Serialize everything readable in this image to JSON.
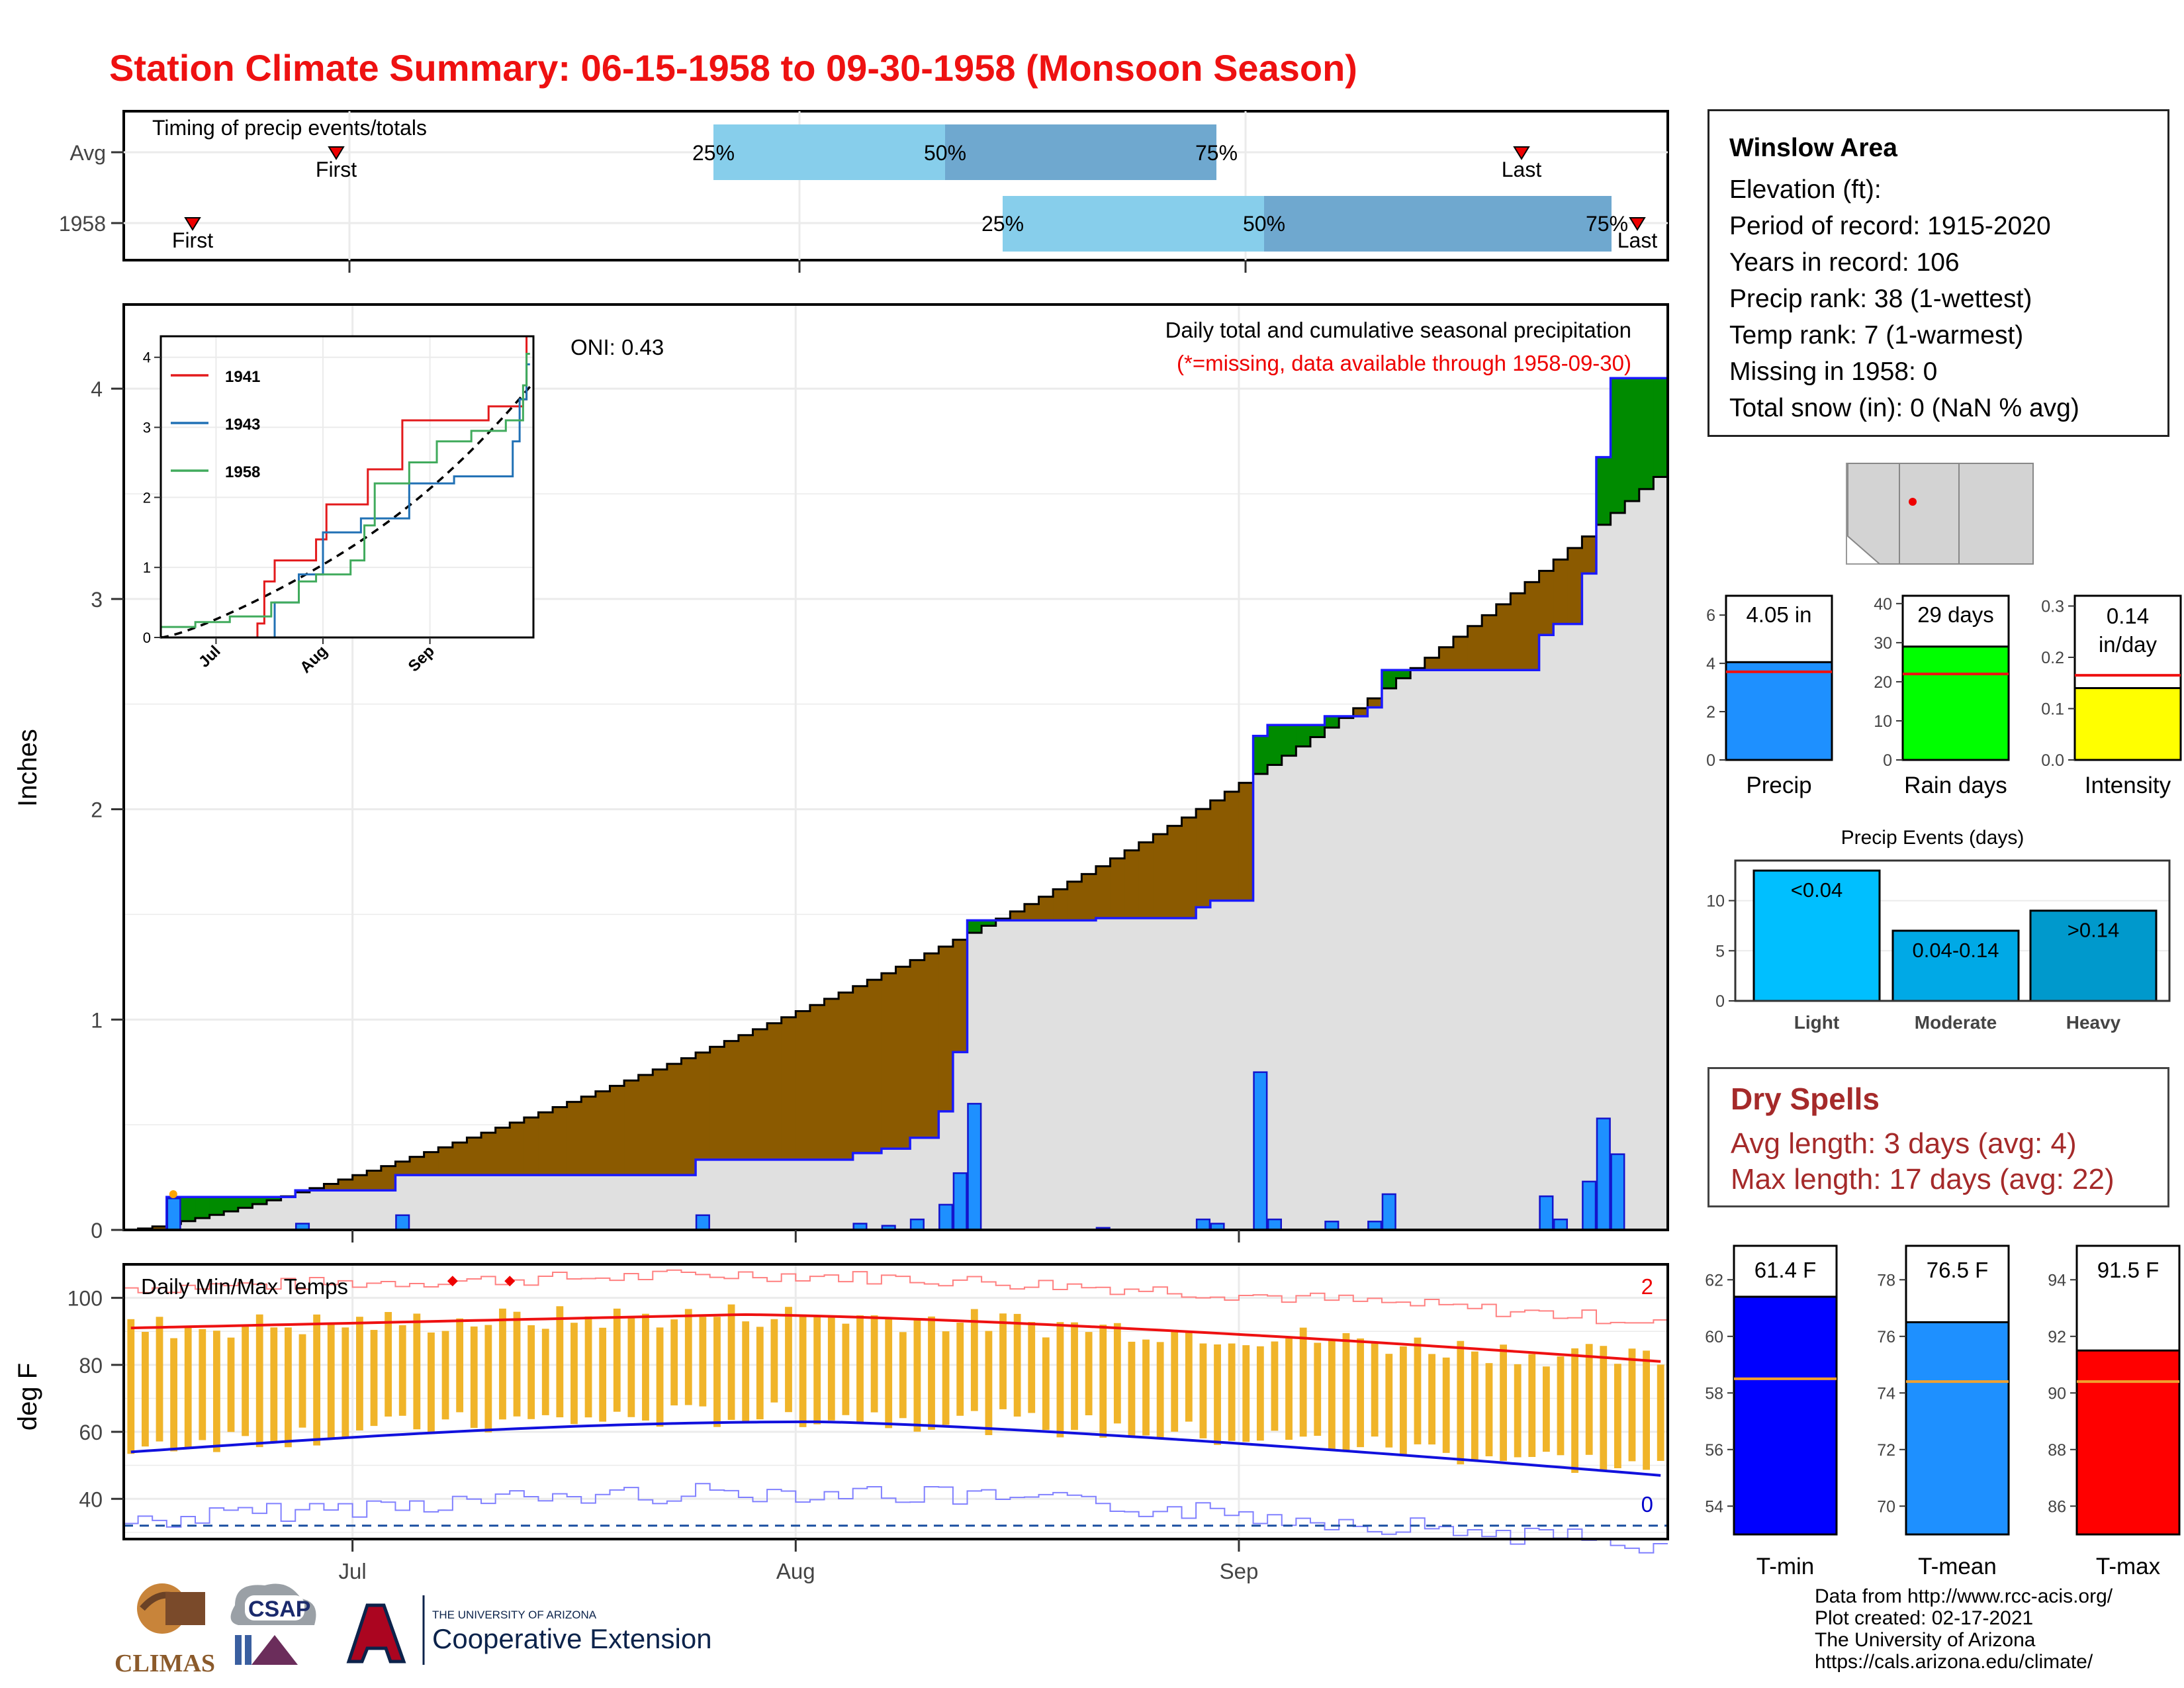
{
  "title": "Station Climate Summary: 06-15-1958 to 09-30-1958 (Monsoon Season)",
  "timing": {
    "label": "Timing of precip events/totals",
    "rows": [
      {
        "name": "Avg",
        "first": "First",
        "last": "Last",
        "p25": "25%",
        "p50": "50%",
        "p75": "75%"
      },
      {
        "name": "1958",
        "first": "First",
        "last": "Last",
        "p25": "25%",
        "p50": "50%",
        "p75": "75%"
      }
    ]
  },
  "precip_panel": {
    "label": "Daily total and cumulative seasonal precipitation",
    "missing_note": "(*=missing, data available through 1958-09-30)",
    "oni": "ONI: 0.43",
    "ylabel": "Inches",
    "yticks": [
      "0",
      "1",
      "2",
      "3",
      "4"
    ]
  },
  "inset": {
    "legend": [
      "1941",
      "1943",
      "1958"
    ],
    "yticks": [
      "0",
      "1",
      "2",
      "3",
      "4"
    ],
    "xticks": [
      "Jul",
      "Aug",
      "Sep"
    ]
  },
  "temp_panel": {
    "label": "Daily Min/Max Temps",
    "ylabel": "deg F",
    "yticks": [
      "40",
      "60",
      "80",
      "100"
    ],
    "record_high_count": "2",
    "record_low_count": "0"
  },
  "xticks": [
    "Jul",
    "Aug",
    "Sep"
  ],
  "station": {
    "name": "Winslow Area",
    "lines": [
      "Elevation (ft):",
      "Period of record: 1915-2020",
      "Years in record: 106",
      "Precip rank: 38 (1-wettest)",
      "Temp rank: 7 (1-warmest)",
      "Missing in 1958: 0",
      "Total snow (in): 0 (NaN % avg)"
    ]
  },
  "summary_bars": [
    {
      "name": "Precip",
      "value_label": "4.05 in",
      "value": 4.05,
      "avg": 3.65,
      "yticks": [
        "0",
        "2",
        "4",
        "6"
      ],
      "color": "#1e90ff"
    },
    {
      "name": "Rain days",
      "value_label": "29 days",
      "value": 29,
      "avg": 22,
      "yticks": [
        "0",
        "10",
        "20",
        "30",
        "40"
      ],
      "color": "#00ff00"
    },
    {
      "name": "Intensity",
      "value_label_1": "0.14",
      "value_label_2": "in/day",
      "value": 0.14,
      "avg": 0.165,
      "yticks": [
        "0.0",
        "0.1",
        "0.2",
        "0.3"
      ],
      "color": "#ffff00"
    }
  ],
  "events": {
    "title": "Precip Events (days)",
    "yticks": [
      "0",
      "5",
      "10"
    ],
    "bars": [
      {
        "name": "Light",
        "label": "<0.04",
        "value": 13
      },
      {
        "name": "Moderate",
        "label": "0.04-0.14",
        "value": 7
      },
      {
        "name": "Heavy",
        "label": ">0.14",
        "value": 9
      }
    ]
  },
  "dry_spells": {
    "title": "Dry Spells",
    "avg_line": "Avg length: 3 days (avg: 4)",
    "max_line": "Max length: 17 days (avg: 22)"
  },
  "temp_bars": [
    {
      "name": "T-min",
      "value_label": "61.4 F",
      "value": 61.4,
      "avg": 58.5,
      "yticks": [
        "54",
        "56",
        "58",
        "60",
        "62"
      ],
      "color": "#0000ff"
    },
    {
      "name": "T-mean",
      "value_label": "76.5 F",
      "value": 76.5,
      "avg": 74.4,
      "yticks": [
        "70",
        "72",
        "74",
        "76",
        "78"
      ],
      "color": "#1e90ff"
    },
    {
      "name": "T-max",
      "value_label": "91.5 F",
      "value": 91.5,
      "avg": 90.4,
      "yticks": [
        "86",
        "88",
        "90",
        "92",
        "94"
      ],
      "color": "#ff0000"
    }
  ],
  "credits": [
    "Data from http://www.rcc-acis.org/",
    "Plot created: 02-17-2021",
    "The University of Arizona",
    "https://cals.arizona.edu/climate/"
  ],
  "logos": {
    "climas": "CLIMAS",
    "csap": "CSAP",
    "ua_small": "THE UNIVERSITY OF ARIZONA",
    "ua_big": "Cooperative Extension"
  },
  "chart_data": {
    "type": "line",
    "x_start": "1958-06-15",
    "x_end": "1958-09-30",
    "daily_precip_1958": [
      [
        "1958-06-18",
        0.15
      ],
      [
        "1958-06-27",
        0.03
      ],
      [
        "1958-07-04",
        0.07
      ],
      [
        "1958-07-25",
        0.07
      ],
      [
        "1958-08-05",
        0.03
      ],
      [
        "1958-08-07",
        0.02
      ],
      [
        "1958-08-09",
        0.05
      ],
      [
        "1958-08-11",
        0.12
      ],
      [
        "1958-08-12",
        0.27
      ],
      [
        "1958-08-13",
        0.6
      ],
      [
        "1958-08-22",
        0.01
      ],
      [
        "1958-08-29",
        0.05
      ],
      [
        "1958-08-30",
        0.03
      ],
      [
        "1958-09-02",
        0.75
      ],
      [
        "1958-09-03",
        0.05
      ],
      [
        "1958-09-07",
        0.04
      ],
      [
        "1958-09-10",
        0.04
      ],
      [
        "1958-09-11",
        0.17
      ],
      [
        "1958-09-22",
        0.16
      ],
      [
        "1958-09-23",
        0.05
      ],
      [
        "1958-09-25",
        0.23
      ],
      [
        "1958-09-26",
        0.53
      ],
      [
        "1958-09-27",
        0.36
      ]
    ],
    "cumulative_1958_end": 4.05,
    "cumulative_avg_end": 3.58,
    "temp_max_avg_start": 91,
    "temp_max_avg_mid": 95,
    "temp_max_avg_end": 81,
    "temp_min_avg_start": 54,
    "temp_min_avg_mid": 63,
    "temp_min_avg_end": 47,
    "y_precip": [
      0,
      4.4
    ],
    "y_temp": [
      28,
      110
    ]
  }
}
